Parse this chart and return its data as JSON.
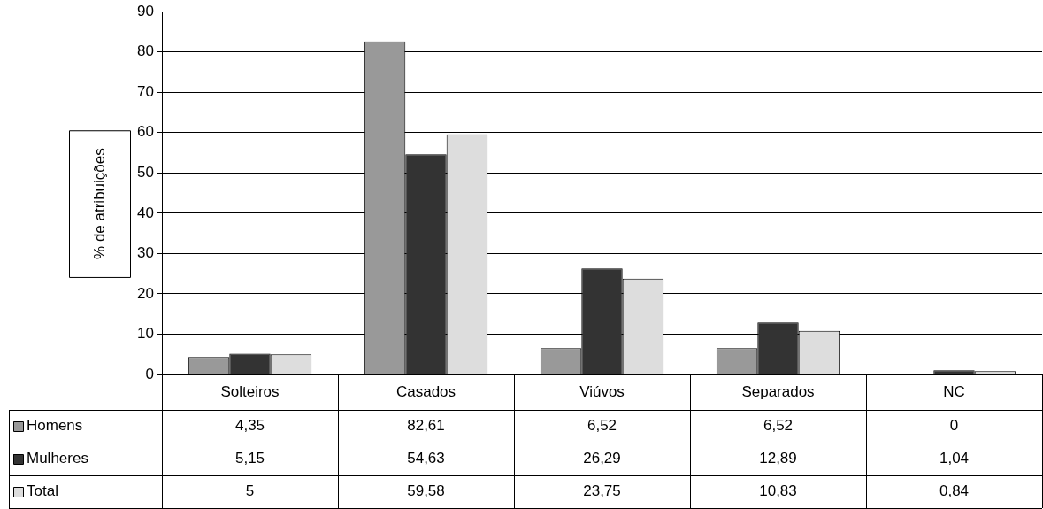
{
  "chart_data": {
    "type": "bar",
    "ylabel": "% de atribuições",
    "categories": [
      "Solteiros",
      "Casados",
      "Viúvos",
      "Separados",
      "NC"
    ],
    "series": [
      {
        "name": "Homens",
        "color": "#999999",
        "values": [
          4.35,
          82.61,
          6.52,
          6.52,
          0
        ],
        "value_labels": [
          "4,35",
          "82,61",
          "6,52",
          "6,52",
          "0"
        ]
      },
      {
        "name": "Mulheres",
        "color": "#333333",
        "values": [
          5.15,
          54.63,
          26.29,
          12.89,
          1.04
        ],
        "value_labels": [
          "5,15",
          "54,63",
          "26,29",
          "12,89",
          "1,04"
        ]
      },
      {
        "name": "Total",
        "color": "#dddddd",
        "values": [
          5,
          59.58,
          23.75,
          10.83,
          0.84
        ],
        "value_labels": [
          "5",
          "59,58",
          "23,75",
          "10,83",
          "0,84"
        ]
      }
    ],
    "ylim": [
      0,
      90
    ],
    "yticks": [
      0,
      10,
      20,
      30,
      40,
      50,
      60,
      70,
      80,
      90
    ],
    "grid": "y",
    "legend": "bottom"
  }
}
